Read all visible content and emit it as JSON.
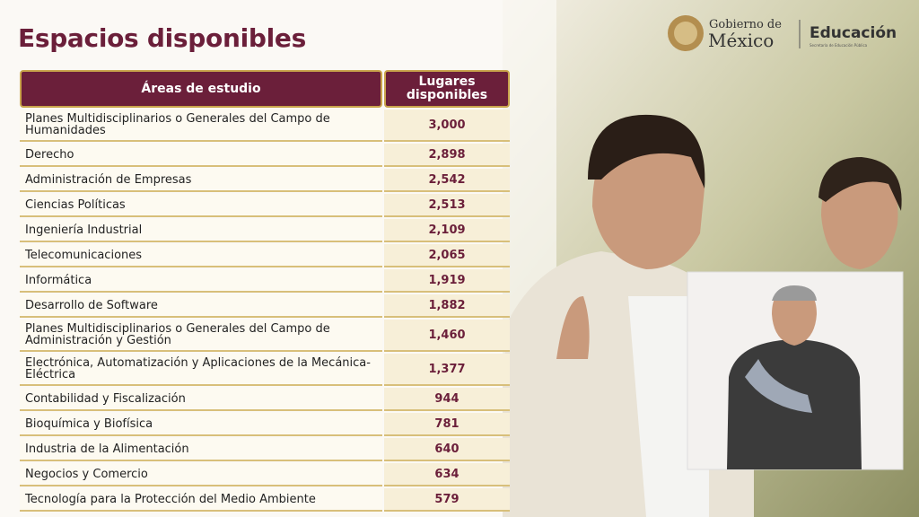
{
  "header": {
    "title": "Espacios disponibles"
  },
  "logo": {
    "line1": "Gobierno de",
    "line2": "México",
    "department": "Educación",
    "subtitle": "Secretaría de Educación Pública"
  },
  "table": {
    "columns": [
      "Áreas de estudio",
      "Lugares disponibles"
    ],
    "rows": [
      [
        "Planes Multidisciplinarios o Generales del Campo de Humanidades",
        "3,000"
      ],
      [
        "Derecho",
        "2,898"
      ],
      [
        "Administración de Empresas",
        "2,542"
      ],
      [
        "Ciencias Políticas",
        "2,513"
      ],
      [
        "Ingeniería Industrial",
        "2,109"
      ],
      [
        "Telecomunicaciones",
        "2,065"
      ],
      [
        "Informática",
        "1,919"
      ],
      [
        "Desarrollo de Software",
        "1,882"
      ],
      [
        "Planes Multidisciplinarios o Generales del Campo de Administración y Gestión",
        "1,460"
      ],
      [
        "Electrónica, Automatización y Aplicaciones de la Mecánica-Eléctrica",
        "1,377"
      ],
      [
        "Contabilidad y Fiscalización",
        "944"
      ],
      [
        "Bioquímica y Biofísica",
        "781"
      ],
      [
        "Industria de la Alimentación",
        "640"
      ],
      [
        "Negocios y Comercio",
        "634"
      ],
      [
        "Tecnología para la Protección del Medio Ambiente",
        "579"
      ]
    ]
  }
}
